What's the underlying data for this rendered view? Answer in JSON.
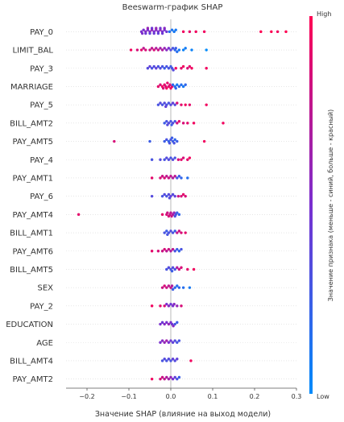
{
  "chart_data": {
    "type": "scatter",
    "title": "Beeswarm-график SHAP",
    "xlabel": "Значение SHAP (влияние на выход модели)",
    "xlim": [
      -0.25,
      0.3
    ],
    "xticks": [
      "−0.2",
      "−0.1",
      "0.0",
      "0.1",
      "0.2",
      "0.3"
    ],
    "xtick_values": [
      -0.2,
      -0.1,
      0.0,
      0.1,
      0.2,
      0.3
    ],
    "colorbar": {
      "label": "Значение признака (меньше - синий, больше - красный)",
      "high": "High",
      "low": "Low",
      "low_color": "#008bfb",
      "high_color": "#ff0052"
    },
    "grid": false,
    "features": [
      {
        "name": "PAY_0",
        "points": [
          [
            -0.07,
            0.5
          ],
          [
            -0.065,
            0.5
          ],
          [
            -0.06,
            0.55
          ],
          [
            -0.055,
            0.5
          ],
          [
            -0.05,
            0.55
          ],
          [
            -0.045,
            0.6
          ],
          [
            -0.04,
            0.5
          ],
          [
            -0.035,
            0.55
          ],
          [
            -0.03,
            0.5
          ],
          [
            -0.025,
            0.6
          ],
          [
            -0.02,
            0.5
          ],
          [
            -0.015,
            0.5
          ],
          [
            -0.01,
            0.45
          ],
          [
            -0.06,
            0.45
          ],
          [
            -0.05,
            0.4
          ],
          [
            -0.04,
            0.45
          ],
          [
            -0.03,
            0.4
          ],
          [
            -0.02,
            0.45
          ],
          [
            -0.015,
            0.55
          ],
          [
            -0.055,
            0.6
          ],
          [
            -0.045,
            0.45
          ],
          [
            -0.035,
            0.6
          ],
          [
            -0.025,
            0.45
          ],
          [
            -0.068,
            0.52
          ],
          [
            -0.003,
            0.15
          ],
          [
            0.003,
            0.12
          ],
          [
            0.008,
            0.1
          ],
          [
            0.012,
            0.1
          ],
          [
            0.03,
            0.95
          ],
          [
            0.045,
            0.9
          ],
          [
            0.06,
            0.95
          ],
          [
            0.08,
            0.95
          ],
          [
            0.215,
            1.0
          ],
          [
            0.24,
            1.0
          ],
          [
            0.255,
            0.95
          ],
          [
            0.275,
            1.0
          ]
        ]
      },
      {
        "name": "LIMIT_BAL",
        "points": [
          [
            -0.095,
            0.95
          ],
          [
            -0.07,
            0.9
          ],
          [
            -0.06,
            0.85
          ],
          [
            -0.05,
            0.8
          ],
          [
            -0.045,
            0.75
          ],
          [
            -0.04,
            0.85
          ],
          [
            -0.035,
            0.7
          ],
          [
            -0.03,
            0.8
          ],
          [
            -0.025,
            0.65
          ],
          [
            -0.02,
            0.7
          ],
          [
            -0.015,
            0.6
          ],
          [
            -0.01,
            0.55
          ],
          [
            -0.005,
            0.5
          ],
          [
            -0.08,
            0.85
          ],
          [
            -0.065,
            0.75
          ],
          [
            0.0,
            0.35
          ],
          [
            0.005,
            0.3
          ],
          [
            0.01,
            0.2
          ],
          [
            0.012,
            0.25
          ],
          [
            0.015,
            0.15
          ],
          [
            0.02,
            0.1
          ],
          [
            0.03,
            0.05
          ],
          [
            0.035,
            0.08
          ],
          [
            0.05,
            0.05
          ],
          [
            0.085,
            0.0
          ]
        ]
      },
      {
        "name": "PAY_3",
        "points": [
          [
            -0.055,
            0.35
          ],
          [
            -0.05,
            0.4
          ],
          [
            -0.045,
            0.3
          ],
          [
            -0.04,
            0.35
          ],
          [
            -0.035,
            0.4
          ],
          [
            -0.03,
            0.3
          ],
          [
            -0.025,
            0.35
          ],
          [
            -0.02,
            0.3
          ],
          [
            -0.015,
            0.25
          ],
          [
            -0.01,
            0.3
          ],
          [
            -0.005,
            0.3
          ],
          [
            0.0,
            0.25
          ],
          [
            0.003,
            0.3
          ],
          [
            0.006,
            0.35
          ],
          [
            0.012,
            0.95
          ],
          [
            0.025,
            0.9
          ],
          [
            0.03,
            0.95
          ],
          [
            0.04,
            0.85
          ],
          [
            0.045,
            0.9
          ],
          [
            0.05,
            0.95
          ],
          [
            0.085,
            0.95
          ]
        ]
      },
      {
        "name": "MARRIAGE",
        "points": [
          [
            -0.03,
            0.9
          ],
          [
            -0.025,
            0.85
          ],
          [
            -0.02,
            0.95
          ],
          [
            -0.015,
            0.9
          ],
          [
            -0.012,
            0.85
          ],
          [
            -0.01,
            0.95
          ],
          [
            -0.005,
            0.9
          ],
          [
            -0.002,
            0.85
          ],
          [
            0.0,
            0.95
          ],
          [
            0.003,
            0.9
          ],
          [
            -0.018,
            0.85
          ],
          [
            -0.008,
            0.9
          ],
          [
            0.005,
            0.2
          ],
          [
            0.01,
            0.15
          ],
          [
            0.015,
            0.1
          ],
          [
            0.02,
            0.2
          ],
          [
            0.025,
            0.15
          ],
          [
            0.03,
            0.1
          ],
          [
            0.035,
            0.2
          ],
          [
            0.012,
            0.2
          ]
        ]
      },
      {
        "name": "PAY_5",
        "points": [
          [
            -0.03,
            0.3
          ],
          [
            -0.025,
            0.35
          ],
          [
            -0.02,
            0.3
          ],
          [
            -0.015,
            0.35
          ],
          [
            -0.01,
            0.3
          ],
          [
            -0.005,
            0.3
          ],
          [
            0.0,
            0.35
          ],
          [
            0.005,
            0.4
          ],
          [
            0.01,
            0.35
          ],
          [
            -0.012,
            0.4
          ],
          [
            0.015,
            0.85
          ],
          [
            0.025,
            0.9
          ],
          [
            0.035,
            0.95
          ],
          [
            0.045,
            0.9
          ],
          [
            0.085,
            0.95
          ]
        ]
      },
      {
        "name": "BILL_AMT2",
        "points": [
          [
            -0.015,
            0.25
          ],
          [
            -0.01,
            0.3
          ],
          [
            -0.005,
            0.35
          ],
          [
            0.0,
            0.3
          ],
          [
            0.005,
            0.35
          ],
          [
            0.01,
            0.3
          ],
          [
            -0.008,
            0.35
          ],
          [
            0.002,
            0.25
          ],
          [
            0.015,
            0.8
          ],
          [
            0.02,
            0.9
          ],
          [
            0.03,
            0.85
          ],
          [
            0.04,
            0.9
          ],
          [
            0.055,
            0.95
          ],
          [
            0.125,
            0.95
          ]
        ]
      },
      {
        "name": "PAY_AMT5",
        "points": [
          [
            -0.135,
            0.85
          ],
          [
            -0.05,
            0.25
          ],
          [
            -0.015,
            0.25
          ],
          [
            -0.01,
            0.3
          ],
          [
            -0.005,
            0.2
          ],
          [
            0.0,
            0.3
          ],
          [
            0.005,
            0.25
          ],
          [
            0.01,
            0.2
          ],
          [
            0.015,
            0.25
          ],
          [
            -0.003,
            0.3
          ],
          [
            0.003,
            0.25
          ],
          [
            0.008,
            0.3
          ],
          [
            0.08,
            0.95
          ]
        ]
      },
      {
        "name": "PAY_4",
        "points": [
          [
            -0.045,
            0.3
          ],
          [
            -0.025,
            0.35
          ],
          [
            -0.015,
            0.3
          ],
          [
            -0.005,
            0.35
          ],
          [
            0.0,
            0.3
          ],
          [
            0.005,
            0.35
          ],
          [
            0.01,
            0.3
          ],
          [
            -0.01,
            0.35
          ],
          [
            0.018,
            0.85
          ],
          [
            0.025,
            0.9
          ],
          [
            0.03,
            0.85
          ],
          [
            0.04,
            0.9
          ],
          [
            0.045,
            0.95
          ]
        ]
      },
      {
        "name": "PAY_AMT1",
        "points": [
          [
            -0.045,
            0.9
          ],
          [
            -0.025,
            0.85
          ],
          [
            -0.02,
            0.8
          ],
          [
            -0.015,
            0.85
          ],
          [
            -0.01,
            0.75
          ],
          [
            -0.005,
            0.8
          ],
          [
            0.0,
            0.75
          ],
          [
            0.005,
            0.7
          ],
          [
            0.01,
            0.75
          ],
          [
            0.015,
            0.3
          ],
          [
            0.02,
            0.25
          ],
          [
            0.025,
            0.2
          ],
          [
            0.04,
            0.15
          ]
        ]
      },
      {
        "name": "PAY_6",
        "points": [
          [
            -0.045,
            0.35
          ],
          [
            -0.02,
            0.3
          ],
          [
            -0.015,
            0.35
          ],
          [
            -0.01,
            0.3
          ],
          [
            -0.005,
            0.35
          ],
          [
            0.0,
            0.4
          ],
          [
            0.005,
            0.35
          ],
          [
            0.01,
            0.4
          ],
          [
            -0.003,
            0.35
          ],
          [
            0.018,
            0.8
          ],
          [
            0.025,
            0.85
          ],
          [
            0.03,
            0.9
          ],
          [
            0.035,
            0.85
          ]
        ]
      },
      {
        "name": "PAY_AMT4",
        "points": [
          [
            -0.22,
            0.9
          ],
          [
            -0.02,
            0.9
          ],
          [
            -0.01,
            0.85
          ],
          [
            -0.008,
            0.8
          ],
          [
            -0.005,
            0.85
          ],
          [
            -0.002,
            0.8
          ],
          [
            0.0,
            0.75
          ],
          [
            0.002,
            0.8
          ],
          [
            0.005,
            0.7
          ],
          [
            0.008,
            0.6
          ],
          [
            0.01,
            0.35
          ],
          [
            0.012,
            0.3
          ],
          [
            0.015,
            0.25
          ],
          [
            0.02,
            0.2
          ]
        ]
      },
      {
        "name": "BILL_AMT1",
        "points": [
          [
            -0.015,
            0.3
          ],
          [
            -0.01,
            0.25
          ],
          [
            -0.005,
            0.3
          ],
          [
            0.0,
            0.35
          ],
          [
            0.005,
            0.3
          ],
          [
            0.01,
            0.25
          ],
          [
            -0.008,
            0.3
          ],
          [
            0.015,
            0.75
          ],
          [
            0.02,
            0.8
          ],
          [
            0.025,
            0.85
          ],
          [
            0.035,
            0.9
          ]
        ]
      },
      {
        "name": "PAY_AMT6",
        "points": [
          [
            -0.045,
            0.9
          ],
          [
            -0.03,
            0.85
          ],
          [
            -0.02,
            0.8
          ],
          [
            -0.015,
            0.85
          ],
          [
            -0.01,
            0.75
          ],
          [
            -0.005,
            0.8
          ],
          [
            0.0,
            0.7
          ],
          [
            0.005,
            0.75
          ],
          [
            0.01,
            0.3
          ],
          [
            0.015,
            0.25
          ],
          [
            0.02,
            0.2
          ],
          [
            0.025,
            0.3
          ]
        ]
      },
      {
        "name": "BILL_AMT5",
        "points": [
          [
            -0.01,
            0.3
          ],
          [
            -0.005,
            0.35
          ],
          [
            0.0,
            0.3
          ],
          [
            0.005,
            0.35
          ],
          [
            0.01,
            0.3
          ],
          [
            0.003,
            0.25
          ],
          [
            0.015,
            0.7
          ],
          [
            0.02,
            0.8
          ],
          [
            0.025,
            0.85
          ],
          [
            0.04,
            0.9
          ],
          [
            0.055,
            0.95
          ]
        ]
      },
      {
        "name": "SEX",
        "points": [
          [
            -0.02,
            0.8
          ],
          [
            -0.015,
            0.85
          ],
          [
            -0.01,
            0.8
          ],
          [
            -0.005,
            0.75
          ],
          [
            0.0,
            0.8
          ],
          [
            0.003,
            0.7
          ],
          [
            0.005,
            0.25
          ],
          [
            0.01,
            0.2
          ],
          [
            0.015,
            0.15
          ],
          [
            0.02,
            0.2
          ],
          [
            0.03,
            0.15
          ],
          [
            0.045,
            0.1
          ]
        ]
      },
      {
        "name": "PAY_2",
        "points": [
          [
            -0.045,
            0.95
          ],
          [
            -0.025,
            0.9
          ],
          [
            -0.015,
            0.85
          ],
          [
            -0.01,
            0.5
          ],
          [
            -0.005,
            0.55
          ],
          [
            0.0,
            0.45
          ],
          [
            0.005,
            0.5
          ],
          [
            0.008,
            0.55
          ],
          [
            0.015,
            0.6
          ],
          [
            0.025,
            0.85
          ]
        ]
      },
      {
        "name": "EDUCATION",
        "points": [
          [
            -0.025,
            0.5
          ],
          [
            -0.02,
            0.45
          ],
          [
            -0.015,
            0.55
          ],
          [
            -0.01,
            0.5
          ],
          [
            -0.005,
            0.6
          ],
          [
            0.0,
            0.5
          ],
          [
            0.003,
            0.45
          ],
          [
            0.006,
            0.55
          ],
          [
            0.01,
            0.3
          ],
          [
            0.015,
            0.25
          ]
        ]
      },
      {
        "name": "AGE",
        "points": [
          [
            -0.025,
            0.5
          ],
          [
            -0.02,
            0.55
          ],
          [
            -0.015,
            0.6
          ],
          [
            -0.01,
            0.65
          ],
          [
            -0.005,
            0.5
          ],
          [
            0.0,
            0.45
          ],
          [
            0.005,
            0.4
          ],
          [
            0.01,
            0.35
          ],
          [
            0.015,
            0.3
          ],
          [
            0.02,
            0.3
          ]
        ]
      },
      {
        "name": "BILL_AMT4",
        "points": [
          [
            -0.02,
            0.3
          ],
          [
            -0.015,
            0.35
          ],
          [
            -0.01,
            0.3
          ],
          [
            -0.005,
            0.35
          ],
          [
            0.0,
            0.3
          ],
          [
            0.005,
            0.4
          ],
          [
            0.01,
            0.35
          ],
          [
            0.015,
            0.4
          ],
          [
            0.048,
            0.95
          ]
        ]
      },
      {
        "name": "PAY_AMT2",
        "points": [
          [
            -0.045,
            0.95
          ],
          [
            -0.025,
            0.85
          ],
          [
            -0.02,
            0.8
          ],
          [
            -0.015,
            0.75
          ],
          [
            -0.01,
            0.7
          ],
          [
            -0.005,
            0.65
          ],
          [
            0.0,
            0.6
          ],
          [
            0.005,
            0.5
          ],
          [
            0.01,
            0.4
          ],
          [
            0.015,
            0.3
          ],
          [
            0.02,
            0.25
          ]
        ]
      }
    ]
  }
}
